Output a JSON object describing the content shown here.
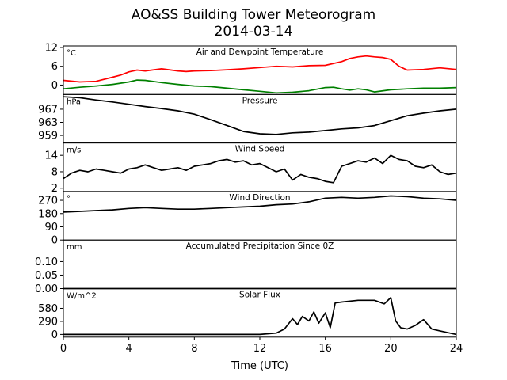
{
  "chart_data": {
    "type": "line",
    "title": "AO&SS Building Tower Meteorogram",
    "subtitle": "2014-03-14",
    "xlabel": "Time (UTC)",
    "xlim": [
      0,
      24
    ],
    "xticks": [
      "0",
      "4",
      "8",
      "12",
      "16",
      "20",
      "24"
    ],
    "panels": [
      {
        "id": "temp",
        "title": "Air and Dewpoint Temperature",
        "unit": "°C",
        "ylim": [
          -3,
          12.5
        ],
        "yticks": [
          {
            "v": 12,
            "t": "12"
          },
          {
            "v": 6,
            "t": "6"
          },
          {
            "v": 0,
            "t": "0"
          }
        ],
        "series": [
          {
            "color": "#ff0000",
            "x": [
              0,
              1,
              2,
              3,
              3.5,
              4,
              4.5,
              5,
              6,
              7,
              7.5,
              8,
              9,
              10,
              11,
              12,
              13,
              14,
              15,
              16,
              17,
              17.5,
              18,
              18.5,
              19,
              19.5,
              20,
              20.5,
              21,
              22,
              23,
              24
            ],
            "y": [
              1.5,
              1.0,
              1.2,
              2.5,
              3.2,
              4.2,
              4.8,
              4.5,
              5.2,
              4.5,
              4.3,
              4.5,
              4.6,
              4.9,
              5.2,
              5.6,
              6.0,
              5.8,
              6.2,
              6.3,
              7.5,
              8.5,
              9.0,
              9.3,
              9.0,
              8.8,
              8.2,
              6.0,
              4.8,
              5.0,
              5.5,
              5.0
            ]
          },
          {
            "color": "#008000",
            "x": [
              0,
              1,
              2,
              3,
              4,
              4.5,
              5,
              6,
              7,
              8,
              9,
              10,
              11,
              12,
              13,
              14,
              15,
              16,
              16.5,
              17,
              17.5,
              18,
              18.5,
              19,
              20,
              21,
              22,
              23,
              24
            ],
            "y": [
              -1.2,
              -0.7,
              -0.3,
              0.2,
              1.0,
              1.6,
              1.5,
              0.8,
              0.2,
              -0.3,
              -0.5,
              -1.0,
              -1.5,
              -2.0,
              -2.5,
              -2.3,
              -1.8,
              -0.8,
              -0.7,
              -1.2,
              -1.6,
              -1.2,
              -1.5,
              -2.2,
              -1.5,
              -1.2,
              -1.0,
              -1.0,
              -0.8
            ]
          }
        ]
      },
      {
        "id": "pressure",
        "title": "Pressure",
        "unit": "hPa",
        "ylim": [
          956.7,
          971.5
        ],
        "yticks": [
          {
            "v": 967,
            "t": "967"
          },
          {
            "v": 963,
            "t": "963"
          },
          {
            "v": 959,
            "t": "959"
          }
        ],
        "series": [
          {
            "color": "#000000",
            "x": [
              0,
              1,
              2,
              3,
              4,
              5,
              6,
              7,
              8,
              9,
              10,
              11,
              12,
              13,
              14,
              15,
              16,
              17,
              18,
              19,
              20,
              21,
              22,
              23,
              24
            ],
            "y": [
              970.8,
              970.5,
              969.8,
              969.2,
              968.5,
              967.8,
              967.2,
              966.5,
              965.5,
              963.8,
              962.0,
              960.2,
              959.5,
              959.3,
              959.8,
              960.0,
              960.5,
              961.0,
              961.3,
              962.0,
              963.5,
              965.0,
              965.8,
              966.5,
              967.0
            ]
          }
        ]
      },
      {
        "id": "wspd",
        "title": "Wind Speed",
        "unit": "m/s",
        "ylim": [
          0.8,
          18.5
        ],
        "yticks": [
          {
            "v": 14,
            "t": "14"
          },
          {
            "v": 8,
            "t": "8"
          },
          {
            "v": 2,
            "t": "2"
          }
        ],
        "series": [
          {
            "color": "#000000",
            "x": [
              0,
              0.5,
              1,
              1.5,
              2,
              2.5,
              3,
              3.5,
              4,
              4.5,
              5,
              5.5,
              6,
              6.5,
              7,
              7.5,
              8,
              8.5,
              9,
              9.5,
              10,
              10.5,
              11,
              11.5,
              12,
              12.5,
              13,
              13.5,
              14,
              14.5,
              15,
              15.5,
              16,
              16.5,
              17,
              17.5,
              18,
              18.5,
              19,
              19.5,
              20,
              20.5,
              21,
              21.5,
              22,
              22.5,
              23,
              23.5,
              24
            ],
            "y": [
              5.5,
              7.5,
              8.5,
              8.0,
              9.0,
              8.5,
              8.0,
              7.5,
              9.0,
              9.5,
              10.5,
              9.5,
              8.5,
              9.0,
              9.5,
              8.5,
              10.0,
              10.5,
              11.0,
              12.0,
              12.5,
              11.5,
              12.0,
              10.5,
              11.0,
              9.5,
              8.0,
              9.0,
              5.0,
              7.0,
              6.0,
              5.5,
              4.5,
              4.0,
              10.0,
              11.0,
              12.0,
              11.5,
              13.0,
              11.0,
              14.0,
              12.5,
              12.0,
              10.0,
              9.5,
              10.5,
              8.0,
              7.0,
              7.5
            ]
          }
        ]
      },
      {
        "id": "wdir",
        "title": "Wind Direction",
        "unit": "°",
        "ylim": [
          0,
          330
        ],
        "yticks": [
          {
            "v": 270,
            "t": "270"
          },
          {
            "v": 180,
            "t": "180"
          },
          {
            "v": 90,
            "t": "90"
          },
          {
            "v": 0,
            "t": "0"
          }
        ],
        "series": [
          {
            "color": "#000000",
            "x": [
              0,
              1,
              2,
              3,
              4,
              5,
              6,
              7,
              8,
              9,
              10,
              11,
              12,
              13,
              14,
              15,
              16,
              17,
              18,
              19,
              20,
              21,
              22,
              23,
              24
            ],
            "y": [
              190,
              195,
              200,
              205,
              215,
              220,
              215,
              210,
              210,
              215,
              220,
              225,
              230,
              240,
              245,
              260,
              285,
              290,
              285,
              290,
              300,
              295,
              285,
              280,
              270
            ]
          }
        ]
      },
      {
        "id": "precip",
        "title": "Accumulated Precipitation Since 0Z",
        "unit": "mm",
        "ylim": [
          0,
          0.18
        ],
        "yticks": [
          {
            "v": 0.1,
            "t": "0.10"
          },
          {
            "v": 0.05,
            "t": "0.05"
          },
          {
            "v": 0.0,
            "t": "0.00"
          }
        ],
        "series": [
          {
            "color": "#000000",
            "x": [
              0,
              24
            ],
            "y": [
              0,
              0
            ]
          }
        ]
      },
      {
        "id": "solar",
        "title": "Solar Flux",
        "unit": "W/m^2",
        "ylim": [
          -60,
          1020
        ],
        "yticks": [
          {
            "v": 580,
            "t": "580"
          },
          {
            "v": 290,
            "t": "290"
          },
          {
            "v": 0,
            "t": "0"
          }
        ],
        "series": [
          {
            "color": "#000000",
            "x": [
              0,
              6,
              10,
              12,
              13,
              13.5,
              14,
              14.3,
              14.6,
              15,
              15.3,
              15.6,
              16,
              16.3,
              16.6,
              17,
              18,
              19,
              19.6,
              20,
              20.3,
              20.6,
              21,
              21.5,
              22,
              22.5,
              23,
              24
            ],
            "y": [
              0,
              0,
              0,
              0,
              30,
              120,
              350,
              220,
              400,
              300,
              500,
              250,
              480,
              150,
              700,
              720,
              760,
              760,
              680,
              820,
              300,
              150,
              120,
              200,
              330,
              120,
              80,
              0
            ]
          }
        ]
      }
    ]
  }
}
